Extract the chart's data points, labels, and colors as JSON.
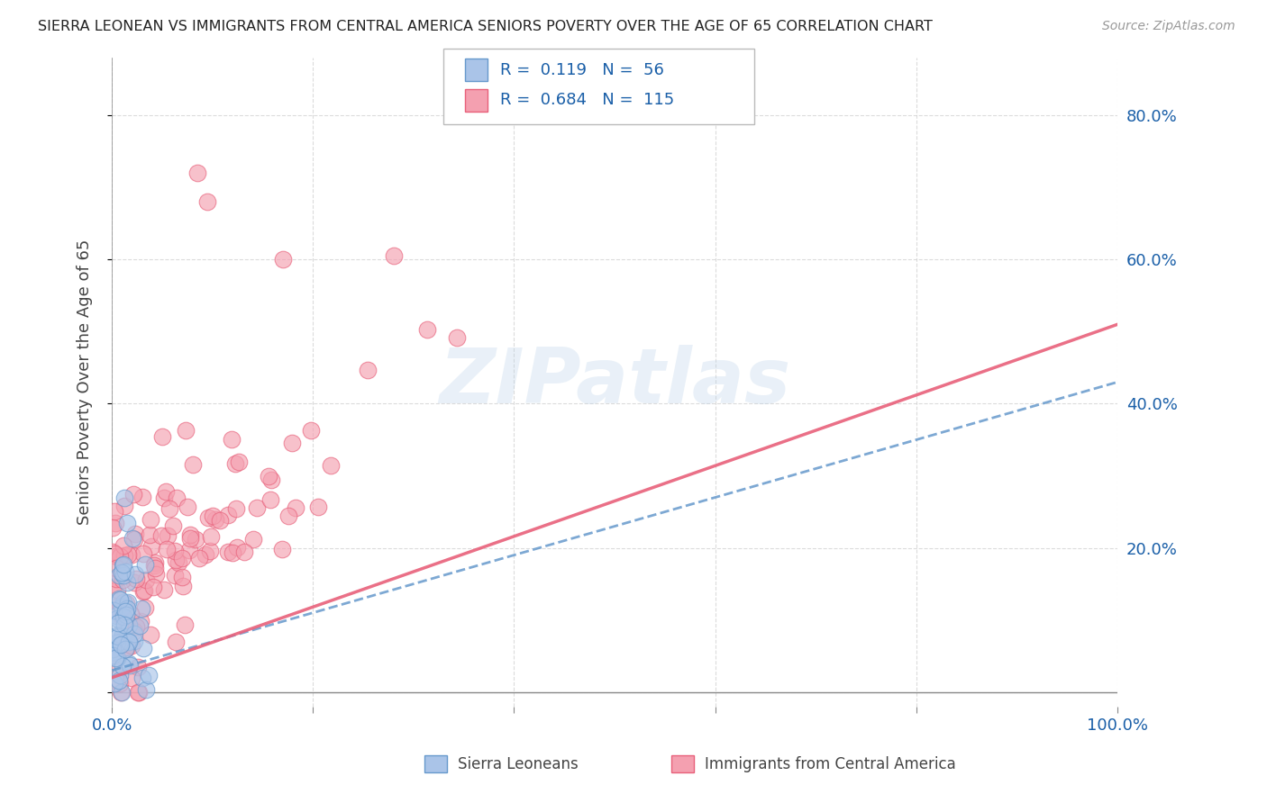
{
  "title": "SIERRA LEONEAN VS IMMIGRANTS FROM CENTRAL AMERICA SENIORS POVERTY OVER THE AGE OF 65 CORRELATION CHART",
  "source": "Source: ZipAtlas.com",
  "ylabel": "Seniors Poverty Over the Age of 65",
  "legend_label1": "Sierra Leoneans",
  "legend_label2": "Immigrants from Central America",
  "R1": 0.119,
  "N1": 56,
  "R2": 0.684,
  "N2": 115,
  "xlim": [
    0.0,
    1.0
  ],
  "ylim": [
    -0.02,
    0.88
  ],
  "color1": "#aac4e8",
  "color2": "#f4a0b0",
  "line1_color": "#6699cc",
  "line2_color": "#e8607a",
  "bg_color": "#ffffff",
  "grid_color": "#cccccc",
  "axis_label_color": "#1a5fa8",
  "watermark": "ZIPatlas",
  "seed": 7
}
